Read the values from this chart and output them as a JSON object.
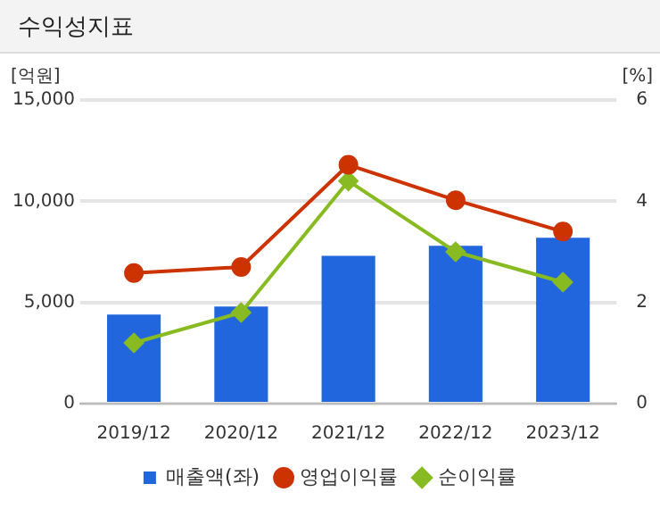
{
  "chart_data": {
    "type": "bar",
    "title": "수익성지표",
    "ylabel": "[억원]",
    "y2label": "[%]",
    "categories": [
      "2019/12",
      "2020/12",
      "2021/12",
      "2022/12",
      "2023/12"
    ],
    "series": [
      {
        "name": "매출액(좌)",
        "color": "#2266dd",
        "values": [
          4400,
          4800,
          7300,
          7800,
          8200
        ]
      },
      {
        "name": "영업이익률",
        "type": "line",
        "axis": "y2",
        "color": "#cc3300",
        "marker": "circle",
        "values": [
          2.58,
          2.7,
          4.72,
          4.02,
          3.4
        ]
      },
      {
        "name": "순이익률",
        "type": "line",
        "axis": "y2",
        "color": "#88bb22",
        "marker": "diamond",
        "values": [
          1.2,
          1.8,
          4.4,
          3.0,
          2.4
        ]
      }
    ],
    "ylim": [
      0,
      15000
    ],
    "yticks": [
      {
        "value": 0,
        "label": "0"
      },
      {
        "value": 5000,
        "label": "5,000"
      },
      {
        "value": 10000,
        "label": "10,000"
      },
      {
        "value": 15000,
        "label": "15,000"
      }
    ],
    "y2lim": [
      0,
      6
    ],
    "y2ticks": [
      0,
      2,
      4,
      6
    ],
    "grid": "y",
    "legend": "bottom"
  }
}
